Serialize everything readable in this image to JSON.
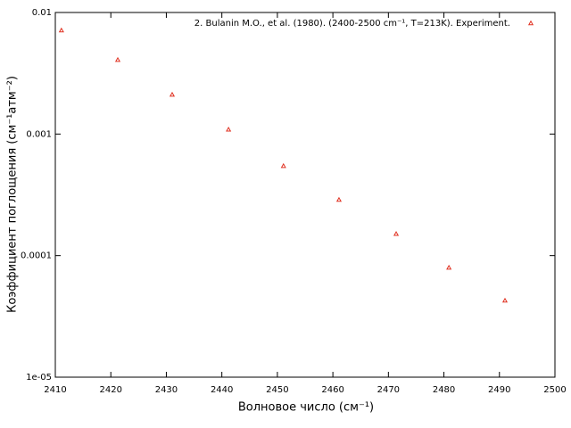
{
  "chart_data": {
    "type": "scatter",
    "xlabel": "Волновое число (см⁻¹)",
    "ylabel": "Коэффициент поглощения (см⁻¹атм⁻²)",
    "series": [
      {
        "name": "2. Bulanin M.O., et al. (1980). (2400-2500 cm⁻¹, T=213K). Experiment.",
        "color": "#e03020",
        "x": [
          2411.1,
          2421.25,
          2431.05,
          2441.2,
          2451.1,
          2461.1,
          2471.4,
          2480.9,
          2491.0
        ],
        "values": [
          0.00713,
          0.00408,
          0.00211,
          0.00109,
          0.000547,
          0.000288,
          0.000151,
          7.97e-05,
          4.27e-05
        ]
      }
    ],
    "xlim": [
      2410,
      2500
    ],
    "xticks": [
      2410,
      2420,
      2430,
      2440,
      2450,
      2460,
      2470,
      2480,
      2490,
      2500
    ],
    "ylim": [
      1e-05,
      0.01
    ],
    "log_y": true,
    "yticks": [
      {
        "value": 1e-05,
        "label": "1e-05"
      },
      0.0001,
      0.001,
      0.01
    ],
    "legend": "top-right",
    "grid": false
  }
}
